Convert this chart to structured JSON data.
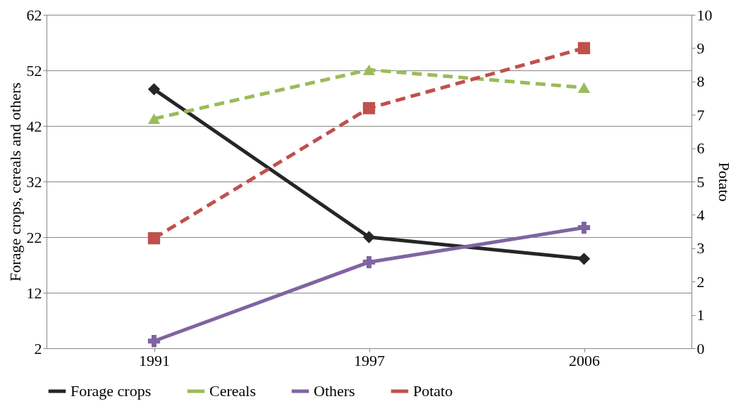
{
  "chart_data": {
    "type": "line",
    "categories": [
      "1991",
      "1997",
      "2006"
    ],
    "ylabel": "Forage crops, cereals and others",
    "y2label": "Potato",
    "ylim": [
      2,
      62
    ],
    "yticks": [
      2,
      12,
      22,
      32,
      42,
      52,
      62
    ],
    "y2lim": [
      0,
      10
    ],
    "y2ticks": [
      0,
      1,
      2,
      3,
      4,
      5,
      6,
      7,
      8,
      9,
      10
    ],
    "grid": "y",
    "legend": "bottom",
    "series": [
      {
        "name": "Forage crops",
        "color": "#262626",
        "values": [
          48.6,
          22,
          18.1
        ],
        "marker": "diamond",
        "line_style": "solid"
      },
      {
        "name": "Cereals",
        "color": "#9bbb59",
        "values": [
          43.3,
          52.1,
          48.9
        ],
        "marker": "triangle",
        "line_style": "dashed"
      },
      {
        "name": "Others",
        "color": "#8064a2",
        "values": [
          3.3,
          17.5,
          23.7
        ],
        "marker": "cross",
        "line_style": "solid"
      },
      {
        "name": "Potato",
        "color": "#c0504d",
        "values": [
          3.3,
          7.2,
          9.0
        ],
        "marker": "square",
        "line_style": "dashed",
        "axis": "y2"
      }
    ]
  }
}
